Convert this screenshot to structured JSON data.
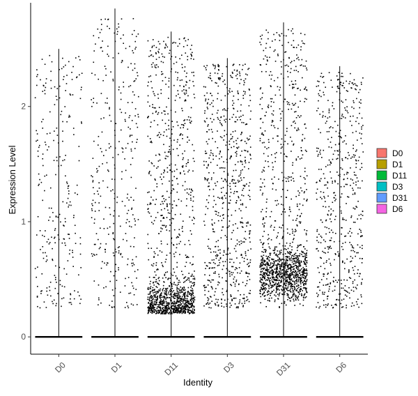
{
  "chart_data": {
    "type": "scatter",
    "subtype": "violin-jitter",
    "title": "",
    "xlabel": "Identity",
    "ylabel": "Expression Level",
    "ylim": [
      -0.15,
      2.9
    ],
    "yticks": [
      "0",
      "1",
      "2"
    ],
    "grid": false,
    "legend_position": "right",
    "categories": [
      {
        "name": "D0",
        "color": "#F8766D",
        "max": 2.5,
        "nonzero": 260,
        "zero_band": true,
        "dist": "uniform"
      },
      {
        "name": "D1",
        "color": "#B79F00",
        "max": 2.85,
        "nonzero": 330,
        "zero_band": true,
        "dist": "uniform"
      },
      {
        "name": "D11",
        "color": "#00BA38",
        "max": 2.65,
        "nonzero": 1300,
        "zero_band": true,
        "dist": "low"
      },
      {
        "name": "D3",
        "color": "#00BFC4",
        "max": 2.42,
        "nonzero": 700,
        "zero_band": true,
        "dist": "uniform"
      },
      {
        "name": "D31",
        "color": "#619CFF",
        "max": 2.73,
        "nonzero": 1400,
        "zero_band": true,
        "dist": "mid"
      },
      {
        "name": "D6",
        "color": "#F564E3",
        "max": 2.35,
        "nonzero": 560,
        "zero_band": true,
        "dist": "uniform"
      }
    ]
  }
}
